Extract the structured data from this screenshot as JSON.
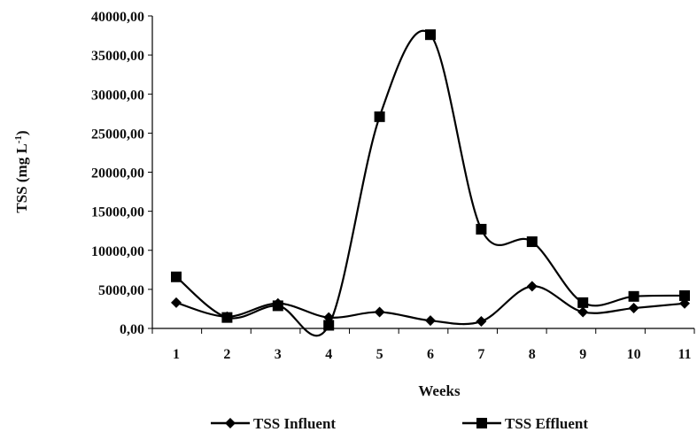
{
  "chart_data": {
    "type": "line",
    "title": "",
    "xlabel": "Weeks",
    "ylabel": "TSS (mg L-1)",
    "ylabel_main": "TSS (mg L",
    "ylabel_sup": "-1",
    "ylabel_end": ")",
    "ylim": [
      0,
      40000
    ],
    "y_ticks": [
      0,
      5000,
      10000,
      15000,
      20000,
      25000,
      30000,
      35000,
      40000
    ],
    "y_tick_labels": [
      "0,00",
      "5000,00",
      "10000,00",
      "15000,00",
      "20000,00",
      "25000,00",
      "30000,00",
      "35000,00",
      "40000,00"
    ],
    "categories": [
      "1",
      "2",
      "3",
      "4",
      "5",
      "6",
      "7",
      "8",
      "9",
      "10",
      "11"
    ],
    "grid": false,
    "legend_position": "bottom",
    "series": [
      {
        "name": "TSS Influent",
        "marker": "diamond",
        "color": "#000000",
        "values": [
          3300,
          1500,
          3200,
          1400,
          2100,
          1000,
          900,
          5400,
          2100,
          2600,
          3200
        ]
      },
      {
        "name": "TSS Effluent",
        "marker": "square",
        "color": "#000000",
        "values": [
          6600,
          1400,
          2900,
          400,
          27100,
          37600,
          12700,
          11100,
          3300,
          4100,
          4200
        ]
      }
    ]
  }
}
